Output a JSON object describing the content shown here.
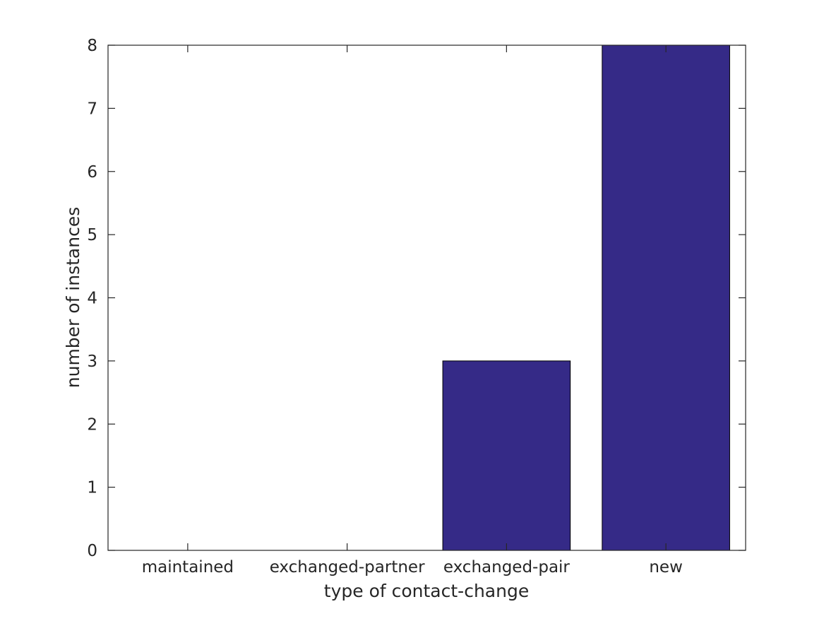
{
  "chart_data": {
    "type": "bar",
    "title": "",
    "categories": [
      "maintained",
      "exchanged-partner",
      "exchanged-pair",
      "new"
    ],
    "values": [
      0,
      0,
      3,
      8
    ],
    "xlabel": "type of contact-change",
    "ylabel": "number of instances",
    "ylim": [
      0,
      8
    ],
    "yticks": [
      0,
      1,
      2,
      3,
      4,
      5,
      6,
      7,
      8
    ],
    "bar_color": "#352A87",
    "bar_edge_color": "#000000",
    "axis_color": "#262626",
    "text_color": "#262626",
    "background_color": "#FFFFFF",
    "bar_width_fraction": 0.8,
    "grid": false,
    "legend": null,
    "tick_direction": "in",
    "box": true
  }
}
